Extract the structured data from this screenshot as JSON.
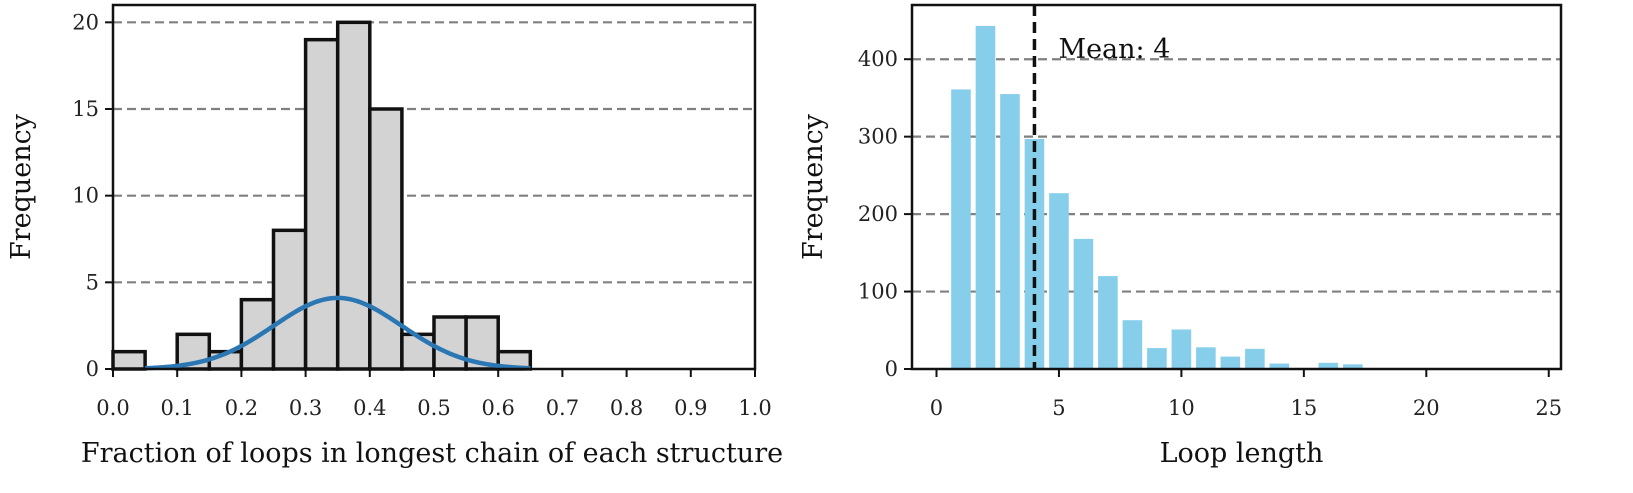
{
  "chart_data": [
    {
      "type": "bar",
      "subtype": "histogram",
      "xlabel": "Fraction of loops in longest chain of each structure",
      "ylabel": "Frequency",
      "xlim": [
        0.0,
        1.0
      ],
      "ylim": [
        0,
        21
      ],
      "xticks": [
        "0.0",
        "0.1",
        "0.2",
        "0.3",
        "0.4",
        "0.5",
        "0.6",
        "0.7",
        "0.8",
        "0.9",
        "1.0"
      ],
      "yticks": [
        "0",
        "5",
        "10",
        "15",
        "20"
      ],
      "grid": "horizontal dashed",
      "bin_width": 0.05,
      "bin_starts": [
        0.0,
        0.05,
        0.1,
        0.15,
        0.2,
        0.25,
        0.3,
        0.35,
        0.4,
        0.45,
        0.5,
        0.55,
        0.6
      ],
      "values": [
        1,
        0,
        2,
        1,
        4,
        8,
        19,
        20,
        15,
        2,
        3,
        3,
        1
      ],
      "bar_color": "#d3d3d3",
      "edge_color": "#111111",
      "fit_curve": {
        "type": "normal",
        "mean": 0.35,
        "std": 0.1,
        "peak": 4.1,
        "range": [
          0.05,
          0.65
        ],
        "color": "#2a77b4"
      }
    },
    {
      "type": "bar",
      "xlabel": "Loop length",
      "ylabel": "Frequency",
      "xlim": [
        -1,
        25.5
      ],
      "ylim": [
        0,
        470
      ],
      "xticks": [
        "0",
        "5",
        "10",
        "15",
        "20",
        "25"
      ],
      "yticks": [
        "0",
        "100",
        "200",
        "300",
        "400"
      ],
      "grid": "horizontal dashed",
      "x": [
        1,
        2,
        3,
        4,
        5,
        6,
        7,
        8,
        9,
        10,
        11,
        12,
        13,
        14,
        15,
        16,
        17
      ],
      "values": [
        361,
        443,
        355,
        297,
        227,
        168,
        120,
        63,
        27,
        51,
        28,
        16,
        26,
        7,
        0,
        8,
        6
      ],
      "bar_color": "#87ceeb",
      "mean_line": {
        "x": 4,
        "label": "Mean: 4",
        "color": "#111111"
      }
    }
  ]
}
